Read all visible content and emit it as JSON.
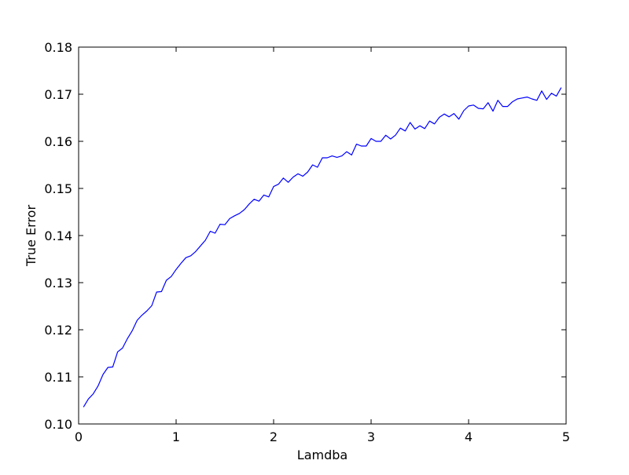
{
  "chart_data": {
    "type": "line",
    "title": "",
    "xlabel": "Lamdba",
    "ylabel": "True Error",
    "xlim": [
      0,
      5
    ],
    "ylim": [
      0.1,
      0.18
    ],
    "xticks": [
      0,
      1,
      2,
      3,
      4,
      5
    ],
    "xtick_labels": [
      "0",
      "1",
      "2",
      "3",
      "4",
      "5"
    ],
    "yticks": [
      0.1,
      0.11,
      0.12,
      0.13,
      0.14,
      0.15,
      0.16,
      0.17,
      0.18
    ],
    "ytick_labels": [
      "0.10",
      "0.11",
      "0.12",
      "0.13",
      "0.14",
      "0.15",
      "0.16",
      "0.17",
      "0.18"
    ],
    "grid": false,
    "legend": "none",
    "series": [
      {
        "color": "#0000ff",
        "x": [
          0.05,
          0.1,
          0.15,
          0.2,
          0.25,
          0.3,
          0.35,
          0.4,
          0.45,
          0.5,
          0.55,
          0.6,
          0.65,
          0.7,
          0.75,
          0.8,
          0.85,
          0.9,
          0.95,
          1.0,
          1.05,
          1.1,
          1.15,
          1.2,
          1.25,
          1.3,
          1.35,
          1.4,
          1.45,
          1.5,
          1.55,
          1.6,
          1.65,
          1.7,
          1.75,
          1.8,
          1.85,
          1.9,
          1.95,
          2.0,
          2.05,
          2.1,
          2.15,
          2.2,
          2.25,
          2.3,
          2.35,
          2.4,
          2.45,
          2.5,
          2.55,
          2.6,
          2.65,
          2.7,
          2.75,
          2.8,
          2.85,
          2.9,
          2.95,
          3.0,
          3.05,
          3.1,
          3.15,
          3.2,
          3.25,
          3.3,
          3.35,
          3.4,
          3.45,
          3.5,
          3.55,
          3.6,
          3.65,
          3.7,
          3.75,
          3.8,
          3.85,
          3.9,
          3.95,
          4.0,
          4.05,
          4.1,
          4.15,
          4.2,
          4.25,
          4.3,
          4.35,
          4.4,
          4.45,
          4.5,
          4.55,
          4.6,
          4.65,
          4.7,
          4.75,
          4.8,
          4.85,
          4.9,
          4.95
        ],
        "y": [
          0.1036,
          0.1053,
          0.1064,
          0.1081,
          0.1105,
          0.112,
          0.1121,
          0.1153,
          0.1161,
          0.1181,
          0.1198,
          0.122,
          0.1231,
          0.124,
          0.1251,
          0.128,
          0.1281,
          0.1305,
          0.1313,
          0.1328,
          0.1341,
          0.1353,
          0.1357,
          0.1366,
          0.1378,
          0.139,
          0.1409,
          0.1405,
          0.1424,
          0.1423,
          0.1436,
          0.1442,
          0.1447,
          0.1455,
          0.1467,
          0.1477,
          0.1473,
          0.1486,
          0.1482,
          0.1504,
          0.1509,
          0.1522,
          0.1513,
          0.1524,
          0.1531,
          0.1526,
          0.1535,
          0.155,
          0.1545,
          0.1565,
          0.1565,
          0.1569,
          0.1566,
          0.1569,
          0.1578,
          0.1571,
          0.1594,
          0.159,
          0.159,
          0.1606,
          0.16,
          0.16,
          0.1613,
          0.1605,
          0.1613,
          0.1628,
          0.1622,
          0.164,
          0.1626,
          0.1633,
          0.1627,
          0.1643,
          0.1637,
          0.1651,
          0.1658,
          0.1652,
          0.1659,
          0.1647,
          0.1665,
          0.1675,
          0.1677,
          0.167,
          0.1669,
          0.1682,
          0.1664,
          0.1687,
          0.1674,
          0.1674,
          0.1684,
          0.169,
          0.1692,
          0.1694,
          0.169,
          0.1687,
          0.1707,
          0.1689,
          0.1702,
          0.1696,
          0.1714
        ]
      }
    ]
  }
}
